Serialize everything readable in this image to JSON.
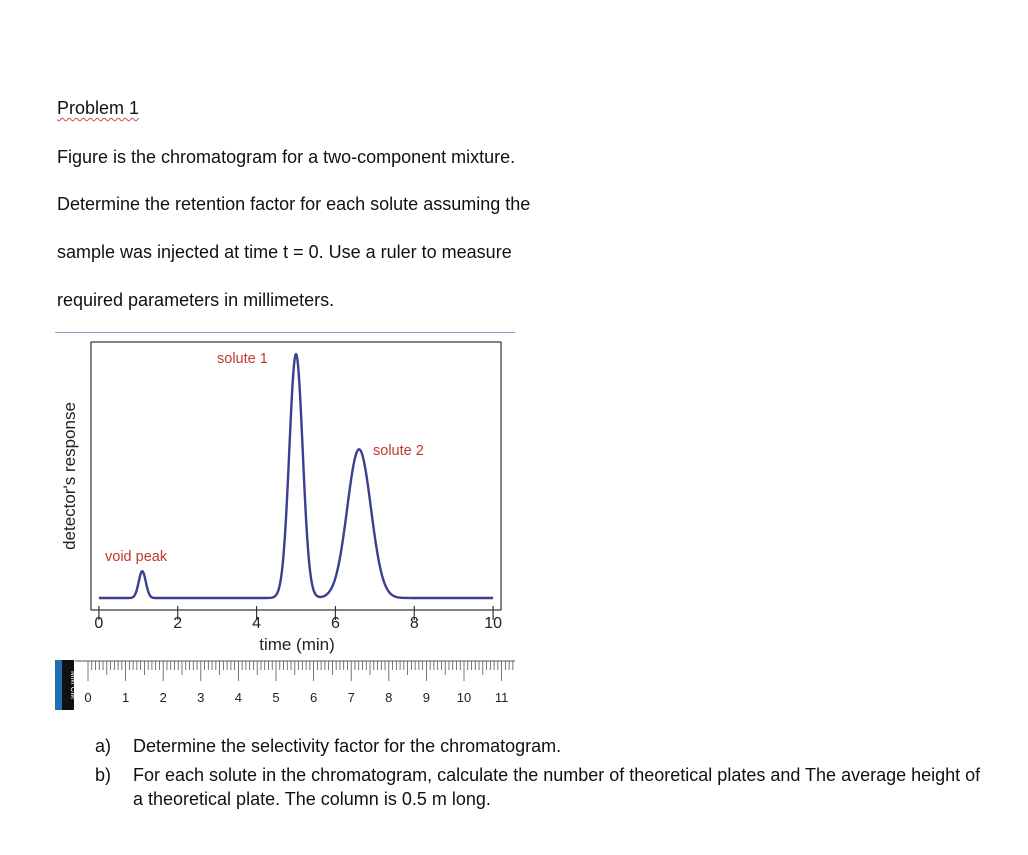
{
  "problem": {
    "title": "Problem 1",
    "lines": [
      "Figure is the chromatogram  for a two-component mixture.",
      "Determine the retention factor for each solute assuming the",
      "sample was injected at time t = 0. Use a ruler to measure",
      "required parameters in millimeters."
    ]
  },
  "chart_data": {
    "type": "line",
    "xlabel": "time (min)",
    "ylabel": "detector's response",
    "xlim": [
      -0.2,
      10.2
    ],
    "ylim": [
      0,
      1.05
    ],
    "xticks": [
      0,
      2,
      4,
      6,
      8,
      10
    ],
    "grid": false,
    "peaks": [
      {
        "name": "void peak",
        "t": 1.1,
        "height": 0.11
      },
      {
        "name": "solute 1",
        "t": 5.0,
        "height": 1.0
      },
      {
        "name": "solute 2",
        "t": 6.6,
        "height": 0.61
      }
    ],
    "annotations": [
      "void peak",
      "solute 1",
      "solute 2"
    ]
  },
  "ruler": {
    "label": "MM CM",
    "numbers": [
      "0",
      "1",
      "2",
      "3",
      "4",
      "5",
      "6",
      "7",
      "8",
      "9",
      "10",
      "11"
    ]
  },
  "questions": [
    {
      "label": "a)",
      "text": "Determine the selectivity factor for the chromatogram."
    },
    {
      "label": "b)",
      "text": "For each solute in the chromatogram, calculate the number of theoretical plates and The average height of a theoretical plate. The column is 0.5 m long."
    }
  ],
  "colors": {
    "curve": "#3b3f8f",
    "annotation": "#c0392b",
    "ruler_stripe": "#1f6fb2"
  }
}
